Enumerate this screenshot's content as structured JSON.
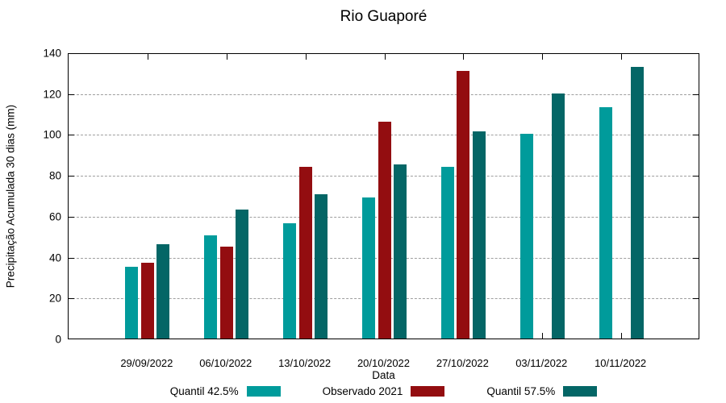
{
  "chart_data": {
    "type": "bar",
    "title": "Rio Guaporé",
    "xlabel": "Data",
    "ylabel": "Precipitação Acumulada 30 dias (mm)",
    "ylim": [
      0,
      140
    ],
    "ytick_step": 20,
    "grid": true,
    "legend_position": "bottom",
    "categories": [
      "29/09/2022",
      "06/10/2022",
      "13/10/2022",
      "20/10/2022",
      "27/10/2022",
      "03/11/2022",
      "10/11/2022"
    ],
    "series": [
      {
        "name": "Quantil 42.5%",
        "color": "#009B9B",
        "values": [
          35,
          50.5,
          56.5,
          69,
          84,
          100,
          113
        ]
      },
      {
        "name": "Observado 2021",
        "color": "#930D10",
        "values": [
          37,
          45,
          84,
          106,
          131,
          null,
          null
        ]
      },
      {
        "name": "Quantil 57.5%",
        "color": "#046666",
        "values": [
          46,
          63,
          70.5,
          85,
          101.5,
          120,
          133
        ]
      }
    ]
  }
}
